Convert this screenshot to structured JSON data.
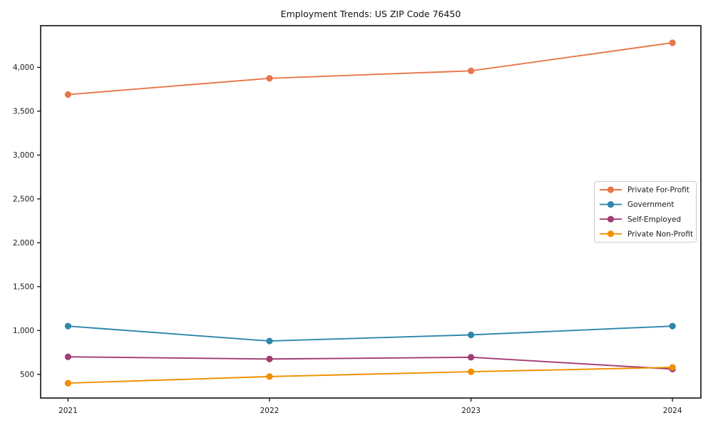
{
  "chart_data": {
    "type": "line",
    "title": "Employment Trends: US ZIP Code 76450",
    "x": [
      "2021",
      "2022",
      "2023",
      "2024"
    ],
    "xlabel": "",
    "ylabel": "",
    "series": [
      {
        "name": "Private For-Profit",
        "color": "#E8764B",
        "values": [
          3690,
          3875,
          3960,
          4280
        ]
      },
      {
        "name": "Government",
        "color": "#2E86AB",
        "values": [
          1050,
          880,
          950,
          1050
        ]
      },
      {
        "name": "Self-Employed",
        "color": "#A23B72",
        "values": [
          700,
          675,
          695,
          560
        ]
      },
      {
        "name": "Private Non-Profit",
        "color": "#F18F01",
        "values": [
          400,
          475,
          530,
          580
        ]
      }
    ],
    "yticks": [
      500,
      1000,
      1500,
      2000,
      2500,
      3000,
      3500,
      4000
    ],
    "ytick_labels": [
      "500",
      "1,000",
      "1,500",
      "2,000",
      "2,500",
      "3,000",
      "3,500",
      "4,000"
    ],
    "ylim": [
      230,
      4475
    ],
    "grid": false,
    "marker": "o",
    "legend": {
      "position": "center-right",
      "labels": [
        "Private For-Profit",
        "Government",
        "Self-Employed",
        "Private Non-Profit"
      ]
    },
    "frame_color": "#000000",
    "legend_border_color": "#cccccc"
  }
}
